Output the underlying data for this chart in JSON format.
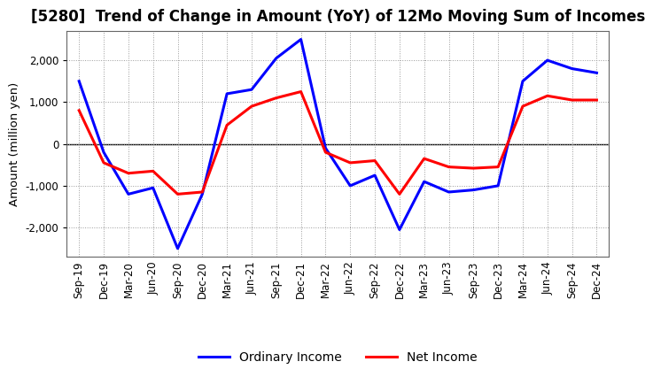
{
  "title": "[5280]  Trend of Change in Amount (YoY) of 12Mo Moving Sum of Incomes",
  "ylabel": "Amount (million yen)",
  "x_labels": [
    "Sep-19",
    "Dec-19",
    "Mar-20",
    "Jun-20",
    "Sep-20",
    "Dec-20",
    "Mar-21",
    "Jun-21",
    "Sep-21",
    "Dec-21",
    "Mar-22",
    "Jun-22",
    "Sep-22",
    "Dec-22",
    "Mar-23",
    "Jun-23",
    "Sep-23",
    "Dec-23",
    "Mar-24",
    "Jun-24",
    "Sep-24",
    "Dec-24"
  ],
  "ordinary_income": [
    1500,
    -200,
    -1200,
    -1050,
    -2500,
    -1200,
    1200,
    1300,
    2050,
    2500,
    -100,
    -1000,
    -750,
    -2050,
    -900,
    -1150,
    -1100,
    -1000,
    1500,
    2000,
    1800,
    1700
  ],
  "net_income": [
    800,
    -450,
    -700,
    -650,
    -1200,
    -1150,
    450,
    900,
    1100,
    1250,
    -200,
    -450,
    -400,
    -1200,
    -350,
    -550,
    -580,
    -550,
    900,
    1150,
    1050,
    1050
  ],
  "ordinary_color": "#0000FF",
  "net_color": "#FF0000",
  "background_color": "#FFFFFF",
  "plot_bg_color": "#FFFFFF",
  "grid_color": "#999999",
  "ylim": [
    -2700,
    2700
  ],
  "yticks": [
    -2000,
    -1000,
    0,
    1000,
    2000
  ],
  "legend_labels": [
    "Ordinary Income",
    "Net Income"
  ],
  "line_width": 2.2,
  "title_fontsize": 12,
  "axis_fontsize": 9.5,
  "tick_fontsize": 8.5
}
